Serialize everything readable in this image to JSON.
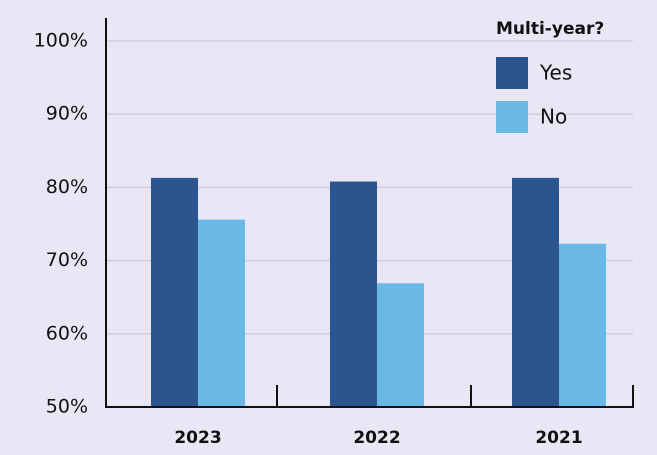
{
  "chart_data": {
    "type": "bar",
    "legend_title": "Multi-year?",
    "categories": [
      "2023",
      "2022",
      "2021"
    ],
    "series": [
      {
        "name": "Yes",
        "color": "#2c5590",
        "values": [
          81.3,
          80.8,
          81.3
        ]
      },
      {
        "name": "No",
        "color": "#6bb8e6",
        "values": [
          75.6,
          66.9,
          72.3
        ]
      }
    ],
    "ylim": [
      50,
      100
    ],
    "yticks": [
      {
        "value": 50,
        "label": "50%"
      },
      {
        "value": 60,
        "label": "60%"
      },
      {
        "value": 70,
        "label": "70%"
      },
      {
        "value": 80,
        "label": "80%"
      },
      {
        "value": 90,
        "label": "90%"
      },
      {
        "value": 100,
        "label": "100%"
      }
    ],
    "grid": true,
    "legend": "top-right"
  }
}
